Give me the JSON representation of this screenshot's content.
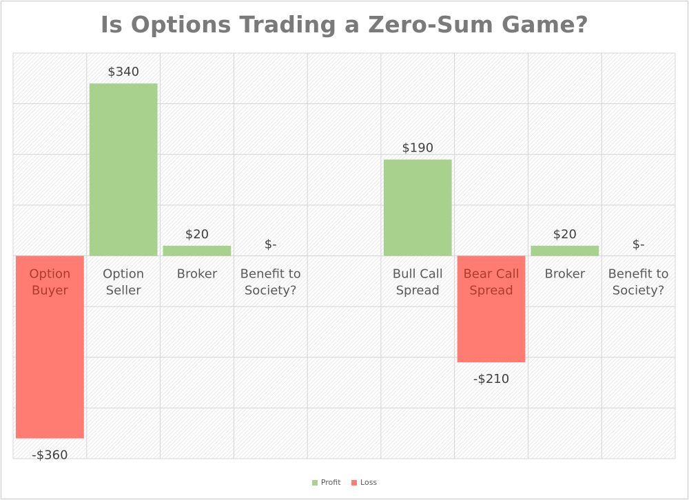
{
  "chart_data": {
    "type": "bar",
    "title": "Is Options Trading a Zero-Sum Game?",
    "categories": [
      [
        "Option",
        "Buyer"
      ],
      [
        "Option",
        "Seller"
      ],
      [
        "Broker"
      ],
      [
        "Benefit to",
        "Society?"
      ],
      [],
      [
        "Bull Call",
        "Spread"
      ],
      [
        "Bear Call",
        "Spread"
      ],
      [
        "Broker"
      ],
      [
        "Benefit to",
        "Society?"
      ]
    ],
    "values": [
      -360,
      340,
      20,
      0,
      null,
      190,
      -210,
      20,
      0
    ],
    "data_labels": [
      "-$360",
      "$340",
      "$20",
      "$-",
      "",
      "$190",
      "-$210",
      "$20",
      "$-"
    ],
    "series_kind": [
      "Loss",
      "Profit",
      "Profit",
      "Profit",
      "",
      "Profit",
      "Loss",
      "Profit",
      "Profit"
    ],
    "ylim": [
      -400,
      400
    ],
    "grid": true,
    "legend": {
      "position": "bottom",
      "entries": [
        {
          "name": "Profit",
          "color": "#a9d18e"
        },
        {
          "name": "Loss",
          "color": "#ff7c73"
        }
      ]
    }
  }
}
